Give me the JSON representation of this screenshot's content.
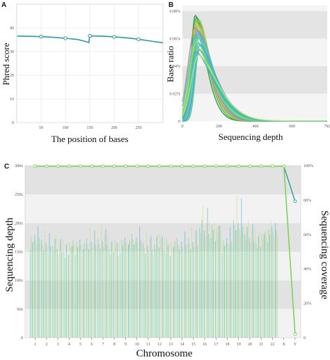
{
  "chart_data": [
    {
      "panel": "A",
      "type": "line",
      "xlabel": "The position of bases",
      "ylabel": "Phred score",
      "xlim": [
        0,
        300
      ],
      "ylim": [
        0,
        50
      ],
      "x_ticks": [
        50,
        100,
        150,
        200,
        250
      ],
      "y_ticks": [
        0,
        10,
        20,
        30,
        40
      ],
      "grid": true,
      "color": "#2a9aa4",
      "series": [
        {
          "x": [
            1,
            10,
            25,
            50,
            75,
            100,
            125,
            140,
            148,
            150,
            175,
            200,
            225,
            250,
            275,
            300
          ],
          "y": [
            36.5,
            36.5,
            36.4,
            36.3,
            36.0,
            35.6,
            35.1,
            34.3,
            33.8,
            36.6,
            36.5,
            36.2,
            35.8,
            35.2,
            34.4,
            33.7
          ]
        }
      ],
      "markers_at": [
        50,
        100,
        150,
        200,
        250
      ]
    },
    {
      "panel": "B",
      "type": "line",
      "xlabel": "Sequencing depth",
      "ylabel": "Base ratio",
      "xlim": [
        0,
        792
      ],
      "ylim": [
        0,
        0.08
      ],
      "x_ticks": [
        "0",
        "200",
        "400",
        "600",
        "792"
      ],
      "y_ticks": [
        "0",
        "0.02%",
        "0.04%",
        "0.06%",
        "0.08%"
      ],
      "y_tick_values": [
        0,
        0.02,
        0.04,
        0.06,
        0.08
      ],
      "x_tick_values": [
        0,
        200,
        400,
        600,
        792
      ],
      "y_unit": "%",
      "grid": "alternating bands",
      "series_count": 24,
      "peak_depth_range": [
        70,
        95
      ],
      "peak_ratio_range": [
        0.048,
        0.077
      ],
      "colors": [
        "#2d8f3c",
        "#3aa655",
        "#66bb44",
        "#8ccf4a",
        "#b5d94a",
        "#d6cf55",
        "#c9a86a",
        "#b88a8a",
        "#9a8fb0",
        "#7aa0c8",
        "#4fb3d0",
        "#36c2c0",
        "#2fd3a8",
        "#55e0a0",
        "#7ed88f",
        "#a3d37a",
        "#5ab4e6",
        "#48a2d8",
        "#6fc96a",
        "#93d660",
        "#4ec48a",
        "#2fb8a0",
        "#3cc0d8",
        "#c2e07a"
      ]
    },
    {
      "panel": "C",
      "type": "bar",
      "xlabel": "Chromosome",
      "ylabel": "Sequencing depth",
      "y2label": "Sequencing coverage",
      "categories": [
        "1",
        "2",
        "3",
        "4",
        "5",
        "6",
        "7",
        "8",
        "9",
        "10",
        "11",
        "12",
        "13",
        "14",
        "15",
        "16",
        "17",
        "18",
        "19",
        "20",
        "21",
        "22",
        "X",
        "Y"
      ],
      "ylim": [
        0,
        300
      ],
      "y_ticks": [
        "0",
        "50x",
        "100x",
        "150x",
        "200x",
        "250x",
        "300x"
      ],
      "y_tick_values": [
        0,
        50,
        100,
        150,
        200,
        250,
        300
      ],
      "y2lim": [
        0,
        100
      ],
      "y2_ticks": [
        "0",
        "20%",
        "40%",
        "60%",
        "80%",
        "100%"
      ],
      "y2_tick_values": [
        0,
        20,
        40,
        60,
        80,
        100
      ],
      "bars_per_chromosome": 10,
      "depth_values": [
        168,
        162,
        158,
        155,
        158,
        162,
        170,
        158,
        160,
        168,
        160,
        165,
        158,
        158,
        165,
        192,
        182,
        162,
        196,
        178,
        170,
        180,
        0,
        0
      ],
      "depth_peak_values": [
        180,
        175,
        172,
        168,
        170,
        178,
        188,
        172,
        176,
        182,
        174,
        180,
        170,
        172,
        182,
        228,
        205,
        178,
        236,
        198,
        188,
        215,
        0,
        0
      ],
      "coverage": {
        "name": "",
        "values": [
          99.7,
          99.7,
          99.7,
          99.7,
          99.7,
          99.7,
          99.7,
          99.7,
          99.7,
          99.7,
          99.7,
          99.7,
          99.7,
          99.7,
          99.7,
          99.7,
          99.7,
          99.7,
          99.7,
          99.7,
          99.7,
          99.7,
          99.7,
          2.0
        ],
        "color": "#7dd35a"
      },
      "depth_line": {
        "x_index": [
          22,
          23
        ],
        "values": [
          299,
          238
        ],
        "color": "#2a9aa4"
      },
      "grid": "alternating bands",
      "bar_colors": [
        "#5cc1d6",
        "#8fd46b",
        "#2fbf8f",
        "#c5dd78",
        "#46b3c4",
        "#9ad98c",
        "#e0d070",
        "#3fa9c9",
        "#70cc5a",
        "#b2e2a2"
      ]
    }
  ],
  "panel_labels": {
    "a": "A",
    "b": "B",
    "c": "C"
  }
}
